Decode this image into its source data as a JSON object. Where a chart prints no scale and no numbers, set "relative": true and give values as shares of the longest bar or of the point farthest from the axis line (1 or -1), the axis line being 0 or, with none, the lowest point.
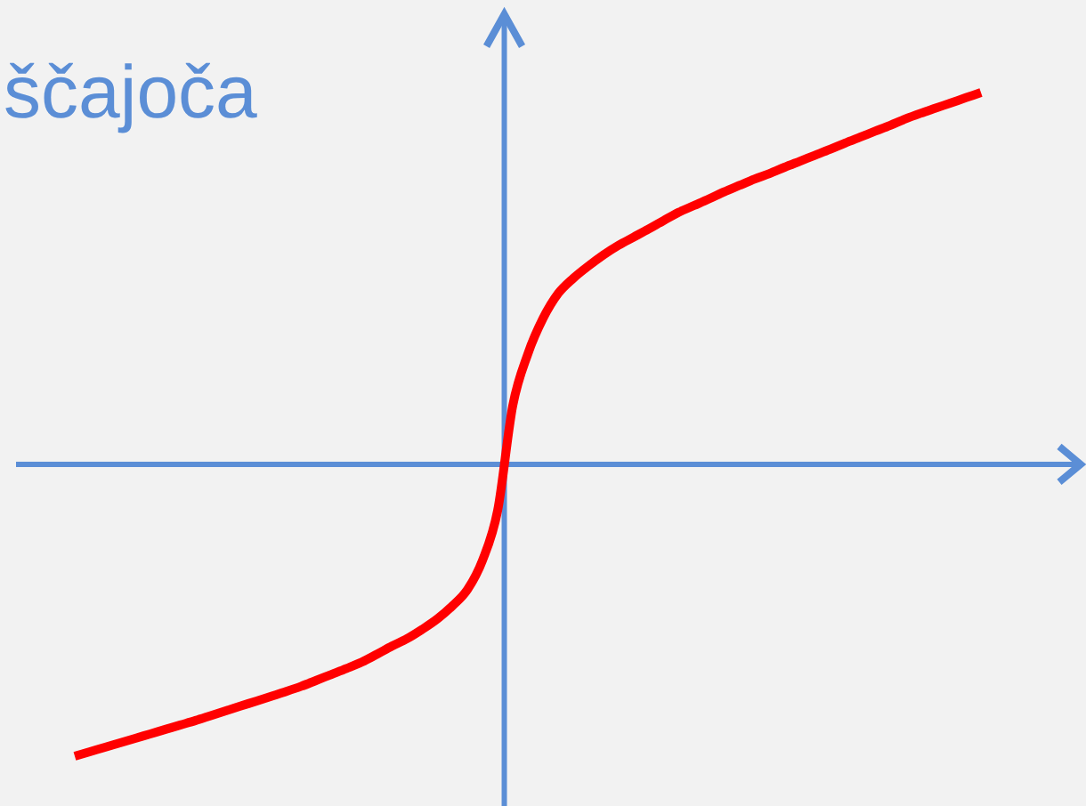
{
  "chart_data": {
    "type": "line",
    "title": "ščajoča",
    "relative": true,
    "marker": "none",
    "line_style": "solid",
    "color": "#ff0000",
    "ref_lines": [
      {
        "axis": "y",
        "value": 0,
        "color": "#5b8ed6"
      }
    ],
    "categories": [
      null,
      null,
      null,
      null,
      null,
      null,
      null,
      null,
      null,
      null,
      null,
      null,
      null,
      null,
      null,
      null,
      null,
      null,
      null,
      null,
      null,
      null,
      null,
      null,
      null,
      null,
      null,
      null,
      null,
      null,
      null,
      null,
      null,
      null,
      null,
      null,
      null,
      null,
      null,
      null,
      null,
      null,
      null,
      null,
      null,
      null,
      null,
      null,
      null,
      null,
      null,
      null,
      null,
      null,
      null,
      null,
      null,
      null,
      null,
      null,
      null
    ],
    "values": [
      -0.785,
      -0.773,
      -0.761,
      -0.749,
      -0.737,
      -0.725,
      -0.713,
      -0.701,
      -0.689,
      -0.676,
      -0.663,
      -0.65,
      -0.637,
      -0.624,
      -0.611,
      -0.597,
      -0.581,
      -0.565,
      -0.549,
      -0.532,
      -0.511,
      -0.489,
      -0.469,
      -0.444,
      -0.416,
      -0.381,
      -0.337,
      -0.258,
      -0.124,
      0.158,
      0.297,
      0.392,
      0.459,
      0.5,
      0.533,
      0.563,
      0.589,
      0.611,
      0.633,
      0.656,
      0.678,
      0.696,
      0.714,
      0.733,
      0.75,
      0.767,
      0.782,
      0.799,
      0.815,
      0.831,
      0.847,
      0.864,
      0.88,
      0.896,
      0.912,
      0.929,
      0.944,
      0.958,
      0.972,
      0.986,
      1
    ]
  }
}
